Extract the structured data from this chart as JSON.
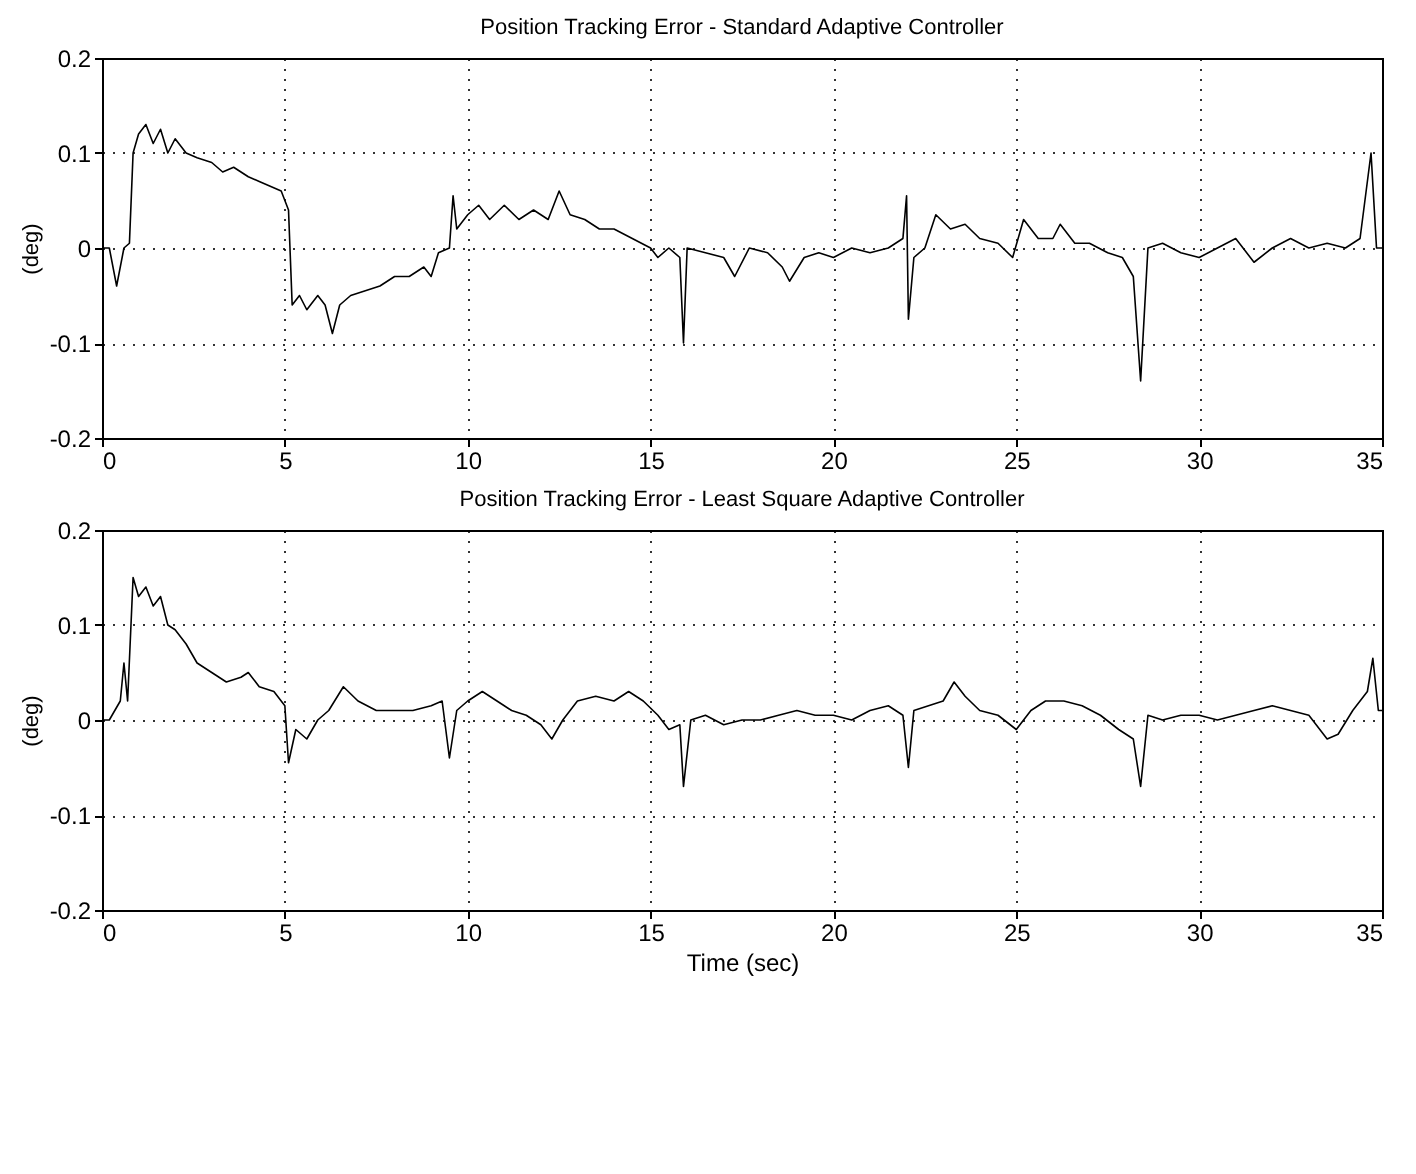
{
  "chart_data": [
    {
      "type": "line",
      "title": "Position Tracking Error - Standard Adaptive Controller",
      "ylabel": "(deg)",
      "color": "#000000",
      "grid": true,
      "xlim": [
        0,
        35
      ],
      "ylim": [
        -0.2,
        0.2
      ],
      "xticks": [
        0,
        5,
        10,
        15,
        20,
        25,
        30,
        35
      ],
      "yticks": [
        -0.2,
        -0.1,
        0,
        0.1,
        0.2
      ],
      "x": [
        0,
        0.2,
        0.4,
        0.6,
        0.75,
        0.85,
        1.0,
        1.2,
        1.4,
        1.6,
        1.8,
        2.0,
        2.3,
        2.6,
        3.0,
        3.3,
        3.6,
        4.0,
        4.3,
        4.6,
        4.9,
        5.1,
        5.2,
        5.4,
        5.6,
        5.9,
        6.1,
        6.3,
        6.5,
        6.8,
        7.2,
        7.6,
        8.0,
        8.4,
        8.8,
        9.0,
        9.2,
        9.5,
        9.6,
        9.7,
        10.0,
        10.3,
        10.6,
        11.0,
        11.4,
        11.8,
        12.2,
        12.5,
        12.8,
        13.2,
        13.6,
        14.0,
        14.5,
        15.0,
        15.2,
        15.5,
        15.8,
        15.9,
        16.0,
        16.5,
        17.0,
        17.3,
        17.7,
        18.2,
        18.6,
        18.8,
        19.2,
        19.6,
        20.0,
        20.5,
        21.0,
        21.5,
        21.9,
        22.0,
        22.05,
        22.2,
        22.5,
        22.8,
        23.2,
        23.6,
        24.0,
        24.5,
        24.9,
        25.2,
        25.6,
        26.0,
        26.2,
        26.6,
        27.0,
        27.5,
        27.9,
        28.2,
        28.4,
        28.6,
        29.0,
        29.5,
        30.0,
        30.5,
        31.0,
        31.5,
        32.0,
        32.5,
        33.0,
        33.5,
        34.0,
        34.4,
        34.7,
        34.85,
        35
      ],
      "values": [
        0,
        0,
        -0.04,
        0,
        0.005,
        0.1,
        0.12,
        0.13,
        0.11,
        0.125,
        0.1,
        0.115,
        0.1,
        0.095,
        0.09,
        0.08,
        0.085,
        0.075,
        0.07,
        0.065,
        0.06,
        0.04,
        -0.06,
        -0.05,
        -0.065,
        -0.05,
        -0.06,
        -0.09,
        -0.06,
        -0.05,
        -0.045,
        -0.04,
        -0.03,
        -0.03,
        -0.02,
        -0.03,
        -0.005,
        0,
        0.055,
        0.02,
        0.035,
        0.045,
        0.03,
        0.045,
        0.03,
        0.04,
        0.03,
        0.06,
        0.035,
        0.03,
        0.02,
        0.02,
        0.01,
        0,
        -0.01,
        0,
        -0.01,
        -0.1,
        0,
        -0.005,
        -0.01,
        -0.03,
        0,
        -0.005,
        -0.02,
        -0.035,
        -0.01,
        -0.005,
        -0.01,
        0,
        -0.005,
        0,
        0.01,
        0.055,
        -0.075,
        -0.01,
        0,
        0.035,
        0.02,
        0.025,
        0.01,
        0.005,
        -0.01,
        0.03,
        0.01,
        0.01,
        0.025,
        0.005,
        0.005,
        -0.005,
        -0.01,
        -0.03,
        -0.14,
        0,
        0.005,
        -0.005,
        -0.01,
        0,
        0.01,
        -0.015,
        0,
        0.01,
        0,
        0.005,
        0,
        0.01,
        0.1,
        0,
        0
      ]
    },
    {
      "type": "line",
      "title": "Position Tracking Error - Least Square Adaptive Controller",
      "ylabel": "(deg)",
      "xlabel": "Time (sec)",
      "color": "#000000",
      "grid": true,
      "xlim": [
        0,
        35
      ],
      "ylim": [
        -0.2,
        0.2
      ],
      "xticks": [
        0,
        5,
        10,
        15,
        20,
        25,
        30,
        35
      ],
      "yticks": [
        -0.2,
        -0.1,
        0,
        0.1,
        0.2
      ],
      "x": [
        0,
        0.2,
        0.5,
        0.6,
        0.7,
        0.85,
        1.0,
        1.2,
        1.4,
        1.6,
        1.8,
        2.0,
        2.3,
        2.6,
        3.0,
        3.4,
        3.8,
        4.0,
        4.3,
        4.7,
        5.0,
        5.1,
        5.3,
        5.6,
        5.9,
        6.2,
        6.6,
        7.0,
        7.5,
        8.0,
        8.5,
        9.0,
        9.3,
        9.5,
        9.7,
        10.0,
        10.4,
        10.8,
        11.2,
        11.6,
        12.0,
        12.3,
        12.6,
        13.0,
        13.5,
        14.0,
        14.4,
        14.8,
        15.2,
        15.5,
        15.8,
        15.9,
        16.1,
        16.5,
        17.0,
        17.5,
        18.0,
        18.5,
        19.0,
        19.5,
        20.0,
        20.5,
        21.0,
        21.5,
        21.9,
        22.05,
        22.2,
        22.6,
        23.0,
        23.3,
        23.6,
        24.0,
        24.5,
        25.0,
        25.4,
        25.8,
        26.3,
        26.8,
        27.3,
        27.8,
        28.2,
        28.4,
        28.6,
        29.0,
        29.5,
        30.0,
        30.5,
        31.0,
        31.5,
        32.0,
        32.5,
        33.0,
        33.5,
        33.8,
        34.2,
        34.6,
        34.75,
        34.9,
        35
      ],
      "values": [
        0,
        0,
        0.02,
        0.06,
        0.02,
        0.15,
        0.13,
        0.14,
        0.12,
        0.13,
        0.1,
        0.095,
        0.08,
        0.06,
        0.05,
        0.04,
        0.045,
        0.05,
        0.035,
        0.03,
        0.015,
        -0.045,
        -0.01,
        -0.02,
        0,
        0.01,
        0.035,
        0.02,
        0.01,
        0.01,
        0.01,
        0.015,
        0.02,
        -0.04,
        0.01,
        0.02,
        0.03,
        0.02,
        0.01,
        0.005,
        -0.005,
        -0.02,
        0,
        0.02,
        0.025,
        0.02,
        0.03,
        0.02,
        0.005,
        -0.01,
        -0.005,
        -0.07,
        0,
        0.005,
        -0.005,
        0,
        0,
        0.005,
        0.01,
        0.005,
        0.005,
        0,
        0.01,
        0.015,
        0.005,
        -0.05,
        0.01,
        0.015,
        0.02,
        0.04,
        0.025,
        0.01,
        0.005,
        -0.01,
        0.01,
        0.02,
        0.02,
        0.015,
        0.005,
        -0.01,
        -0.02,
        -0.07,
        0.005,
        0,
        0.005,
        0.005,
        0,
        0.005,
        0.01,
        0.015,
        0.01,
        0.005,
        -0.02,
        -0.015,
        0.01,
        0.03,
        0.065,
        0.01,
        0.01
      ]
    }
  ]
}
